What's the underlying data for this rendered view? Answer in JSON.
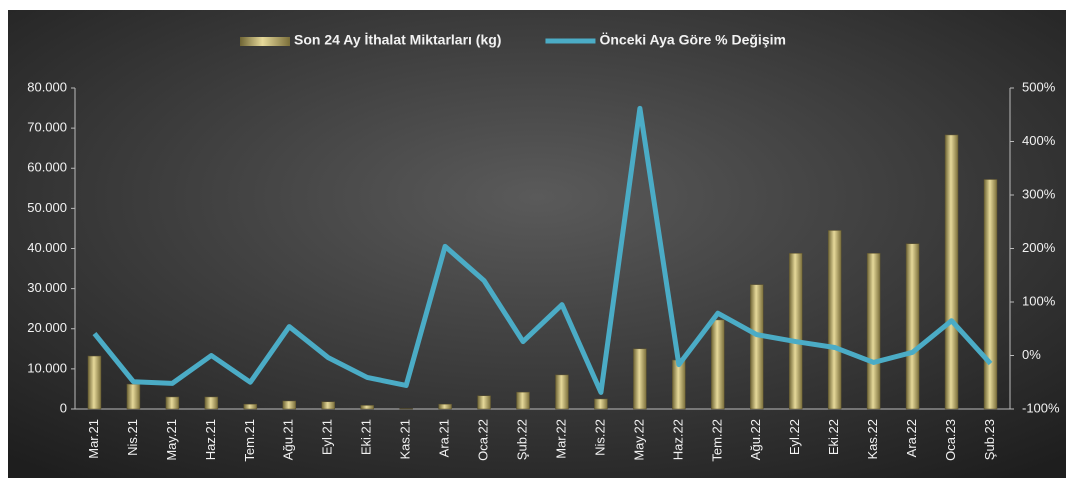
{
  "chart_data": {
    "type": "bar_line",
    "categories": [
      "Mar.21",
      "Nis.21",
      "May.21",
      "Haz.21",
      "Tem.21",
      "Ağu.21",
      "Eyl.21",
      "Eki.21",
      "Kas.21",
      "Ara.21",
      "Oca.22",
      "Şub.22",
      "Mar.22",
      "Nis.22",
      "May.22",
      "Haz.22",
      "Tem.22",
      "Ağu.22",
      "Eyl.22",
      "Eki.22",
      "Kas.22",
      "Ara.22",
      "Oca.23",
      "Şub.23"
    ],
    "series": [
      {
        "name": "Son 24 Ay İthalat Miktarları (kg)",
        "color": "#b8a860",
        "type": "bar",
        "values": [
          13200,
          6200,
          3000,
          3000,
          1200,
          2000,
          1800,
          900,
          100,
          1200,
          3300,
          4200,
          8500,
          2500,
          15000,
          12200,
          22200,
          31000,
          38800,
          44500,
          38800,
          41200,
          68300,
          57200
        ]
      },
      {
        "name": "Önceki Aya Göre % Değişim",
        "color": "#4bacc6",
        "type": "line",
        "axis": "y2",
        "values": [
          41,
          -49,
          -52,
          0,
          -50,
          54,
          -4,
          -41,
          -56,
          204,
          140,
          26,
          95,
          -69,
          462,
          -17,
          79,
          39,
          26,
          15,
          -13,
          6,
          65,
          -15
        ]
      }
    ],
    "ylim": [
      0,
      80000
    ],
    "yticks": [
      0,
      {
        "value": 10000,
        "label": "10.000"
      },
      {
        "value": 20000,
        "label": "20.000"
      },
      {
        "value": 30000,
        "label": "30.000"
      },
      {
        "value": 40000,
        "label": "40.000"
      },
      {
        "value": 50000,
        "label": "50.000"
      },
      {
        "value": 60000,
        "label": "60.000"
      },
      {
        "value": 70000,
        "label": "70.000"
      },
      {
        "value": 80000,
        "label": "80.000"
      }
    ],
    "y2lim": [
      -100,
      500
    ],
    "y2ticks": [
      {
        "value": -100,
        "label": "-100%"
      },
      {
        "value": 0,
        "label": "0%"
      },
      {
        "value": 100,
        "label": "100%"
      },
      {
        "value": 200,
        "label": "200%"
      },
      {
        "value": 300,
        "label": "300%"
      },
      {
        "value": 400,
        "label": "400%"
      },
      {
        "value": 500,
        "label": "500%"
      }
    ],
    "legend": "top"
  }
}
